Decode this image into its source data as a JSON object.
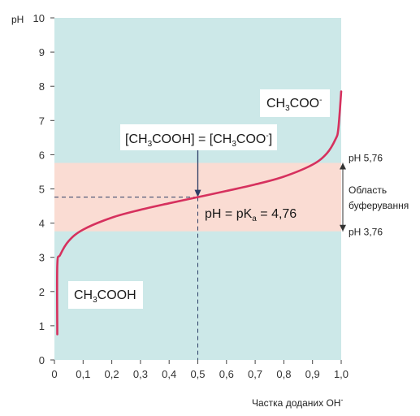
{
  "chart_data": {
    "type": "line",
    "xlabel": "Частка доданих OH",
    "xlabel_sup": "-",
    "ylabel": "pH",
    "xlim": [
      0,
      1.0
    ],
    "ylim": [
      0,
      10
    ],
    "x_ticks": [
      "0",
      "0,1",
      "0,2",
      "0,3",
      "0,4",
      "0,5",
      "0,6",
      "0,7",
      "0,8",
      "0,9",
      "1,0"
    ],
    "y_ticks": [
      "0",
      "1",
      "2",
      "3",
      "4",
      "5",
      "6",
      "7",
      "8",
      "9",
      "10"
    ],
    "pKa": 4.76,
    "series": [
      {
        "x": [
          0.01,
          0.02,
          0.05,
          0.1,
          0.2,
          0.3,
          0.4,
          0.5,
          0.6,
          0.7,
          0.8,
          0.9,
          0.95,
          0.98,
          0.99
        ],
        "y": [
          2.77,
          3.07,
          3.48,
          3.81,
          4.16,
          4.39,
          4.58,
          4.76,
          4.94,
          5.13,
          5.36,
          5.71,
          6.04,
          6.45,
          6.76
        ]
      }
    ],
    "buffer_region": {
      "y_min": 3.76,
      "y_max": 5.76
    },
    "colors": {
      "plot_background": "#cce8e8",
      "buffer_band": "#fadcd3",
      "curve": "#d6315e",
      "arrow": "#2c3e66"
    },
    "annotations": {
      "equality_left": "[CH",
      "equality_sub1": "3",
      "equality_mid": "COOH] = [CH",
      "equality_sub2": "3",
      "equality_right": "COO",
      "equality_sup": "-",
      "equality_end": "]",
      "ph_pka_left": "pH = pK",
      "ph_pka_sub": "a",
      "ph_pka_right": " = 4,76",
      "acid_left": "CH",
      "acid_sub": "3",
      "acid_right": "COOH",
      "anion_left": "CH",
      "anion_sub": "3",
      "anion_right": "COO",
      "anion_sup": "-",
      "ph_high": "pH 5,76",
      "ph_low": "pH 3,76",
      "buffer_label_1": "Область",
      "buffer_label_2": "буферування"
    }
  }
}
